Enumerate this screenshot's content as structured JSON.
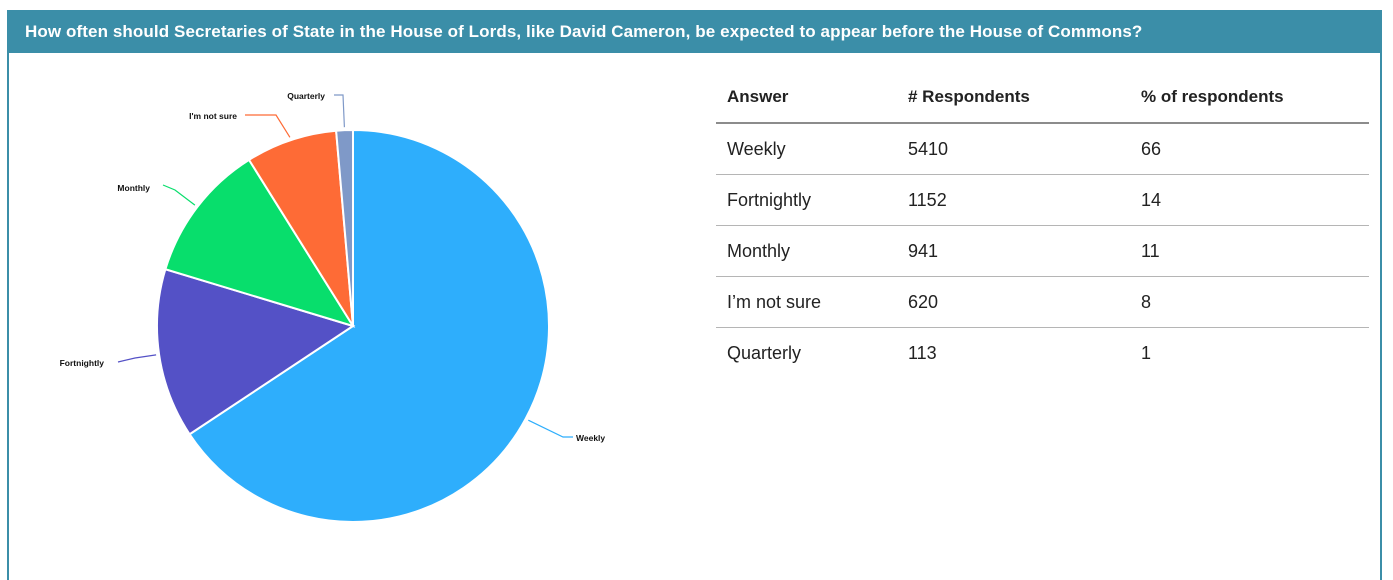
{
  "header": {
    "title": "How often should Secretaries of State in the House of Lords, like David Cameron, be expected to appear before the House of Commons?"
  },
  "colors": {
    "header_bg": "#3b8ea8",
    "weekly": "#2eaefc",
    "fortnightly": "#5451c6",
    "monthly": "#08de6c",
    "not_sure": "#fe6b36",
    "quarterly": "#7f99c8"
  },
  "chart_data": {
    "type": "pie",
    "labels": [
      "Weekly",
      "Fortnightly",
      "Monthly",
      "I'm not sure",
      "Quarterly"
    ],
    "values": [
      5410,
      1152,
      941,
      620,
      113
    ],
    "colors": [
      "#2eaefc",
      "#5451c6",
      "#08de6c",
      "#fe6b36",
      "#7f99c8"
    ]
  },
  "table": {
    "headers": [
      "Answer",
      "# Respondents",
      "% of respondents"
    ],
    "rows": [
      [
        "Weekly",
        "5410",
        "66"
      ],
      [
        "Fortnightly",
        "1152",
        "14"
      ],
      [
        "Monthly",
        "941",
        "11"
      ],
      [
        "I’m not sure",
        "620",
        "8"
      ],
      [
        "Quarterly",
        "113",
        "1"
      ]
    ]
  }
}
